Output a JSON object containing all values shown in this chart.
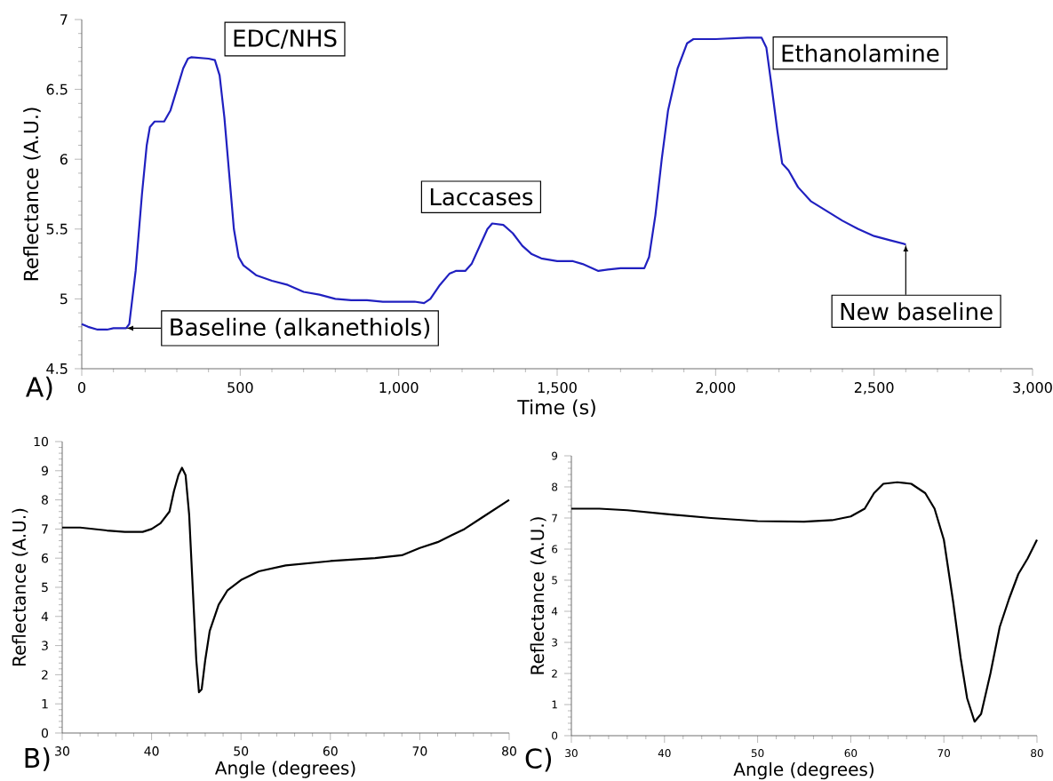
{
  "chart_data": [
    {
      "type": "line",
      "xlabel": "Time (s)",
      "ylabel": "Reflectance (A.U.)",
      "x": [
        0,
        20,
        50,
        80,
        100,
        130,
        140,
        150,
        170,
        190,
        205,
        215,
        230,
        260,
        280,
        300,
        320,
        335,
        345,
        400,
        420,
        435,
        450,
        465,
        480,
        495,
        510,
        550,
        600,
        650,
        700,
        750,
        800,
        850,
        900,
        950,
        1000,
        1050,
        1080,
        1100,
        1130,
        1160,
        1180,
        1210,
        1230,
        1260,
        1280,
        1295,
        1330,
        1360,
        1390,
        1420,
        1450,
        1500,
        1550,
        1580,
        1630,
        1660,
        1700,
        1775,
        1790,
        1810,
        1830,
        1850,
        1880,
        1910,
        1930,
        2000,
        2100,
        2145,
        2160,
        2175,
        2195,
        2210,
        2230,
        2260,
        2300,
        2350,
        2400,
        2450,
        2500,
        2550,
        2600
      ],
      "series": [
        {
          "color": "#2020c0",
          "values": [
            4.82,
            4.8,
            4.78,
            4.78,
            4.79,
            4.79,
            4.79,
            4.82,
            5.2,
            5.75,
            6.1,
            6.23,
            6.27,
            6.27,
            6.35,
            6.5,
            6.65,
            6.72,
            6.73,
            6.72,
            6.71,
            6.6,
            6.3,
            5.9,
            5.5,
            5.3,
            5.24,
            5.17,
            5.13,
            5.1,
            5.05,
            5.03,
            5.0,
            4.99,
            4.99,
            4.98,
            4.98,
            4.98,
            4.97,
            5.0,
            5.1,
            5.18,
            5.2,
            5.2,
            5.25,
            5.4,
            5.5,
            5.54,
            5.53,
            5.47,
            5.38,
            5.32,
            5.29,
            5.27,
            5.27,
            5.25,
            5.2,
            5.21,
            5.22,
            5.22,
            5.3,
            5.6,
            6.0,
            6.35,
            6.65,
            6.83,
            6.86,
            6.86,
            6.87,
            6.87,
            6.8,
            6.55,
            6.2,
            5.97,
            5.92,
            5.8,
            5.7,
            5.63,
            5.56,
            5.5,
            5.45,
            5.42,
            5.39
          ]
        }
      ],
      "xlim": [
        0,
        3000
      ],
      "ylim": [
        4.5,
        7
      ],
      "xticks": [
        0,
        500,
        {
          "value": 1000,
          "label": "1,000"
        },
        {
          "value": 1500,
          "label": "1,500"
        },
        {
          "value": 2000,
          "label": "2,000"
        },
        {
          "value": 2500,
          "label": "2,500"
        },
        {
          "value": 3000,
          "label": "3,000"
        }
      ],
      "yticks": [
        4.5,
        5,
        5.5,
        6,
        6.5,
        7
      ],
      "grid": false,
      "line_style": "solid",
      "annotations": [
        "A)",
        {
          "text": "EDC/NHS",
          "x": 380,
          "y": 6.73
        },
        {
          "text": "Laccases",
          "x": 1300,
          "y": 5.54
        },
        {
          "text": "Ethanolamine",
          "x": 2150,
          "y": 6.87
        },
        {
          "text": "Baseline (alkanethiols)",
          "x": 140,
          "y": 4.79
        },
        {
          "text": "New baseline",
          "x": 2600,
          "y": 5.39
        }
      ]
    },
    {
      "type": "line",
      "xlabel": "Angle (degrees)",
      "ylabel": "Reflectance (A.U.)",
      "x": [
        30,
        32,
        35,
        37,
        39,
        40,
        41,
        42,
        42.5,
        43,
        43.4,
        43.8,
        44.2,
        44.6,
        45,
        45.3,
        45.6,
        46,
        46.5,
        47.5,
        48.5,
        50,
        52,
        55,
        60,
        65,
        68,
        70,
        72,
        75,
        77,
        80
      ],
      "series": [
        {
          "color": "#000000",
          "values": [
            7.05,
            7.05,
            6.95,
            6.9,
            6.9,
            7.0,
            7.2,
            7.6,
            8.3,
            8.85,
            9.1,
            8.85,
            7.5,
            5.0,
            2.5,
            1.4,
            1.5,
            2.5,
            3.5,
            4.4,
            4.9,
            5.25,
            5.55,
            5.75,
            5.9,
            6.0,
            6.1,
            6.35,
            6.55,
            7.0,
            7.4,
            8.0
          ]
        }
      ],
      "xlim": [
        30,
        80
      ],
      "ylim": [
        0,
        10
      ],
      "xticks": [
        30,
        40,
        50,
        60,
        70,
        80
      ],
      "yticks": [
        0,
        1,
        2,
        3,
        4,
        5,
        6,
        7,
        8,
        9,
        10
      ],
      "grid": false,
      "line_style": "solid",
      "annotations": [
        "B)"
      ]
    },
    {
      "type": "line",
      "xlabel": "Angle (degrees)",
      "ylabel": "Reflectance (A.U.)",
      "x": [
        30,
        33,
        36,
        40,
        45,
        50,
        55,
        58,
        60,
        61.5,
        62.5,
        63.5,
        65,
        66.5,
        68,
        69,
        70,
        71,
        71.8,
        72.5,
        73.3,
        74,
        75,
        76,
        77,
        78,
        79,
        80
      ],
      "series": [
        {
          "color": "#000000",
          "values": [
            7.3,
            7.3,
            7.25,
            7.13,
            7.0,
            6.9,
            6.88,
            6.93,
            7.05,
            7.3,
            7.8,
            8.1,
            8.15,
            8.1,
            7.8,
            7.3,
            6.3,
            4.3,
            2.5,
            1.2,
            0.45,
            0.7,
            2.0,
            3.5,
            4.4,
            5.2,
            5.7,
            6.3
          ]
        }
      ],
      "xlim": [
        30,
        80
      ],
      "ylim": [
        0,
        9
      ],
      "xticks": [
        30,
        40,
        50,
        60,
        70,
        80
      ],
      "yticks": [
        0,
        1,
        2,
        3,
        4,
        5,
        6,
        7,
        8,
        9
      ],
      "grid": false,
      "line_style": "solid",
      "annotations": [
        "C)"
      ]
    }
  ]
}
